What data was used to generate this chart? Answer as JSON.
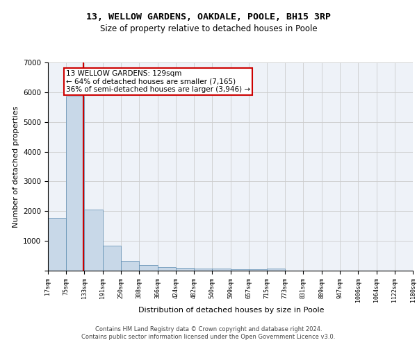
{
  "title1": "13, WELLOW GARDENS, OAKDALE, POOLE, BH15 3RP",
  "title2": "Size of property relative to detached houses in Poole",
  "xlabel": "Distribution of detached houses by size in Poole",
  "ylabel": "Number of detached properties",
  "bar_values": [
    1780,
    5850,
    2060,
    840,
    330,
    190,
    110,
    90,
    75,
    60,
    50,
    50,
    65,
    0,
    0,
    0,
    0,
    0,
    0,
    0
  ],
  "bin_edges": [
    17,
    75,
    133,
    191,
    250,
    308,
    366,
    424,
    482,
    540,
    599,
    657,
    715,
    773,
    831,
    889,
    947,
    1006,
    1064,
    1122,
    1180
  ],
  "bar_color": "#c8d8e8",
  "bar_edge_color": "#5a8ab0",
  "grid_color": "#cccccc",
  "bg_color": "#eef2f8",
  "property_line_x": 129,
  "property_line_color": "#cc0000",
  "annotation_text": "13 WELLOW GARDENS: 129sqm\n← 64% of detached houses are smaller (7,165)\n36% of semi-detached houses are larger (3,946) →",
  "annotation_box_color": "#ffffff",
  "annotation_box_edge": "#cc0000",
  "ylim": [
    0,
    7000
  ],
  "yticks": [
    0,
    1000,
    2000,
    3000,
    4000,
    5000,
    6000,
    7000
  ],
  "footer1": "Contains HM Land Registry data © Crown copyright and database right 2024.",
  "footer2": "Contains public sector information licensed under the Open Government Licence v3.0."
}
